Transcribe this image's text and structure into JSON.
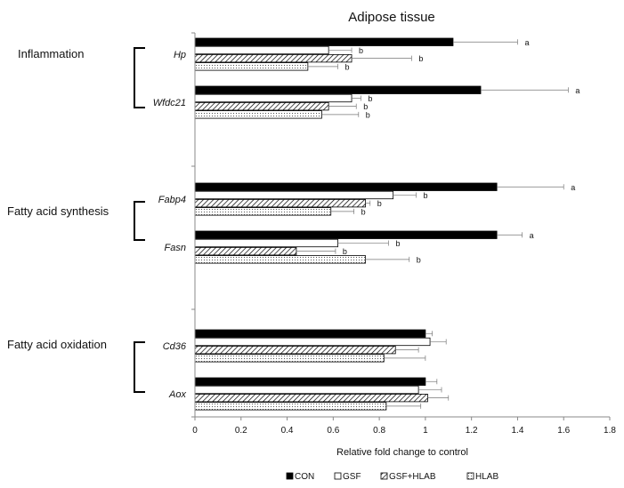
{
  "chart_data": {
    "type": "bar",
    "orientation": "horizontal",
    "title": "Adipose tissue",
    "xlabel": "Relative fold change to control",
    "ylabel": "",
    "xlim": [
      0,
      1.8
    ],
    "xticks": [
      "0",
      "0.2",
      "0.4",
      "0.6",
      "0.8",
      "1",
      "1.2",
      "1.4",
      "1.6",
      "1.8"
    ],
    "grid": false,
    "legend_position": "bottom",
    "colors": {
      "bar_edge": "#000000",
      "con_fill": "#000000",
      "gsf_fill": "#ffffff"
    },
    "groups": [
      {
        "label": "Inflammation",
        "genes": [
          "Hp",
          "Wfdc21"
        ]
      },
      {
        "label": "Fatty acid synthesis",
        "genes": [
          "Fabp4",
          "Fasn"
        ]
      },
      {
        "label": "Fatty acid oxidation",
        "genes": [
          "Cd36",
          "Aox"
        ]
      }
    ],
    "categories": [
      "Hp",
      "Wfdc21",
      "Fabp4",
      "Fasn",
      "Cd36",
      "Aox"
    ],
    "series": [
      {
        "name": "CON",
        "fill": "solid-black",
        "values": [
          1.12,
          1.24,
          1.31,
          1.31,
          1.0,
          1.0
        ],
        "errors": [
          0.28,
          0.38,
          0.29,
          0.11,
          0.03,
          0.05
        ],
        "labels": [
          "a",
          "a",
          "a",
          "a",
          "",
          ""
        ]
      },
      {
        "name": "GSF",
        "fill": "white",
        "values": [
          0.58,
          0.68,
          0.86,
          0.62,
          1.02,
          0.97
        ],
        "errors": [
          0.1,
          0.04,
          0.1,
          0.22,
          0.07,
          0.1
        ],
        "labels": [
          "b",
          "b",
          "b",
          "b",
          "",
          ""
        ]
      },
      {
        "name": "GSF+HLAB",
        "fill": "diagonal-hatch",
        "values": [
          0.68,
          0.58,
          0.74,
          0.44,
          0.87,
          1.01
        ],
        "errors": [
          0.26,
          0.12,
          0.02,
          0.17,
          0.1,
          0.09
        ],
        "labels": [
          "b",
          "b",
          "b",
          "b",
          "",
          ""
        ]
      },
      {
        "name": "HLAB",
        "fill": "dotted",
        "values": [
          0.49,
          0.55,
          0.59,
          0.74,
          0.82,
          0.83
        ],
        "errors": [
          0.13,
          0.16,
          0.1,
          0.19,
          0.18,
          0.15
        ],
        "labels": [
          "b",
          "b",
          "b",
          "b",
          "",
          ""
        ]
      }
    ]
  }
}
